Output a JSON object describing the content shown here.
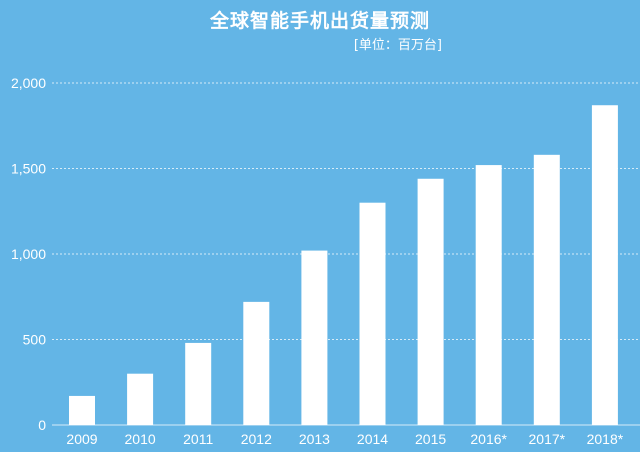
{
  "chart_data": {
    "type": "bar",
    "title": "全球智能手机出货量预测",
    "subtitle": "[单位：百万台]",
    "xlabel": "",
    "ylabel": "",
    "categories": [
      "2009",
      "2010",
      "2011",
      "2012",
      "2013",
      "2014",
      "2015",
      "2016*",
      "2017*",
      "2018*"
    ],
    "values": [
      170,
      300,
      480,
      720,
      1020,
      1300,
      1440,
      1520,
      1580,
      1870
    ],
    "ylim": [
      0,
      2000
    ],
    "yticks": [
      0,
      500,
      1000,
      1500,
      2000
    ],
    "ytick_labels": [
      "0",
      "500",
      "1,000",
      "1,500",
      "2,000"
    ],
    "grid": "horizontal dashed",
    "legend": "none"
  },
  "colors": {
    "background": "#63b5e6",
    "bar": "#ffffff",
    "text": "#ffffff",
    "grid": "#d6ecf8"
  }
}
